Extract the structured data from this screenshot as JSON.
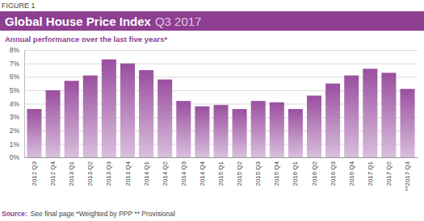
{
  "chart_data": {
    "type": "bar",
    "figure_label": "FIGURE 1",
    "title": "Global House Price Index",
    "title_period": "Q3 2017",
    "subtitle": "Annual performance over the last five years*",
    "source": {
      "label": "Source:",
      "text": "See final page *Weighted by PPP ** Provisional"
    },
    "categories": [
      "2012 Q3",
      "2012 Q4",
      "2013 Q1",
      "2013 Q2",
      "2013 Q3",
      "2013 Q4",
      "2014 Q1",
      "2014 Q2",
      "2014 Q3",
      "2014 Q4",
      "2015 Q1",
      "2015 Q2",
      "2015 Q3",
      "2015 Q4",
      "2016 Q1",
      "2016 Q2",
      "2016 Q3",
      "2016 Q4",
      "2017 Q1",
      "2017 Q2",
      "**2017 Q3"
    ],
    "values": [
      3.6,
      5.0,
      5.7,
      6.1,
      7.3,
      7.0,
      6.5,
      5.8,
      4.2,
      3.8,
      3.9,
      3.6,
      4.2,
      4.1,
      3.6,
      4.6,
      5.5,
      6.1,
      6.6,
      6.3,
      5.1
    ],
    "color": "#9a4f9f",
    "ylim": [
      0,
      8
    ],
    "yticks": [
      {
        "value": 0,
        "label": "0%"
      },
      {
        "value": 1,
        "label": "1%"
      },
      {
        "value": 2,
        "label": "2%"
      },
      {
        "value": 3,
        "label": "3%"
      },
      {
        "value": 4,
        "label": "4%"
      },
      {
        "value": 5,
        "label": "5%"
      },
      {
        "value": 6,
        "label": "6%"
      },
      {
        "value": 7,
        "label": "7%"
      },
      {
        "value": 8,
        "label": "8%"
      }
    ],
    "grid": true
  }
}
